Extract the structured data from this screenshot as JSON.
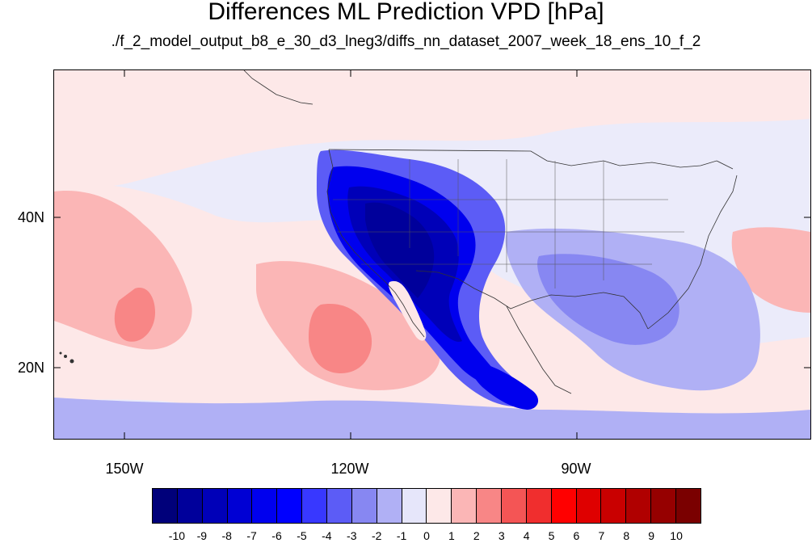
{
  "title": "Differences ML Prediction VPD [hPa]",
  "subtitle": "./f_2_model_output_b8_e_30_d3_lneg3/diffs_nn_dataset_2007_week_18_ens_10_f_2",
  "axes": {
    "lon_labels": [
      "150W",
      "120W",
      "90W"
    ],
    "lat_labels": [
      "40N",
      "20N"
    ]
  },
  "colorbar": {
    "colors": [
      "#00007a",
      "#00009b",
      "#0000b8",
      "#0000d4",
      "#0000ee",
      "#0000ff",
      "#3838ff",
      "#5c5cf6",
      "#8787f2",
      "#b0b0f5",
      "#e6e6fa",
      "#fde8e8",
      "#fbb6b6",
      "#f88686",
      "#f45555",
      "#f02e2e",
      "#ff0000",
      "#df0000",
      "#c90000",
      "#b00000",
      "#960000",
      "#7a0000"
    ],
    "labels": [
      "-10",
      "-9",
      "-8",
      "-7",
      "-6",
      "-5",
      "-4",
      "-3",
      "-2",
      "-1",
      "0",
      "1",
      "2",
      "3",
      "4",
      "5",
      "6",
      "7",
      "8",
      "9",
      "10"
    ]
  }
}
